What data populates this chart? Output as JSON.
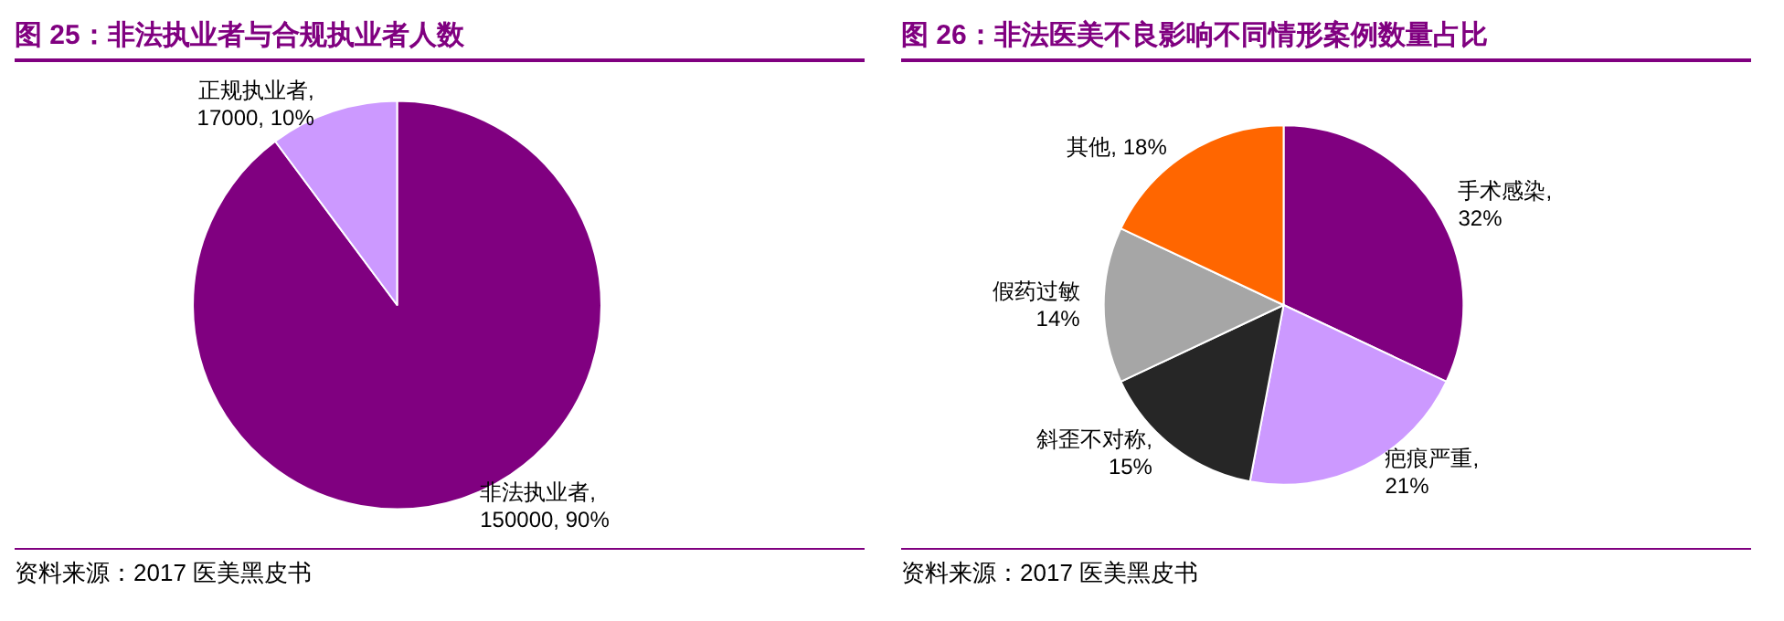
{
  "chart_data": [
    {
      "type": "pie",
      "title": "图 25：非法执业者与合规执业者人数",
      "categories": [
        "非法执业者",
        "正规执业者"
      ],
      "values": [
        150000,
        17000
      ],
      "colors": [
        "#800080",
        "#cc99ff"
      ],
      "value_labels": [
        ",\n150000, 90%",
        ",\n17000, 10%"
      ],
      "annotations": [
        "资料来源：2017 医美黑皮书"
      ]
    },
    {
      "type": "pie",
      "title": "图 26：非法医美不良影响不同情形案例数量占比",
      "categories": [
        "手术感染",
        "疤痕严重",
        "斜歪不对称",
        "假药过敏",
        "其他"
      ],
      "values": [
        32,
        21,
        15,
        14,
        18
      ],
      "colors": [
        "#800080",
        "#cc99ff",
        "#262626",
        "#a6a6a6",
        "#ff6600"
      ],
      "value_labels": [
        ",\n32%",
        ",\n21%",
        ",\n15%",
        "\n14%",
        ", 18%"
      ],
      "annotations": [
        "资料来源：2017 医美黑皮书"
      ]
    }
  ]
}
